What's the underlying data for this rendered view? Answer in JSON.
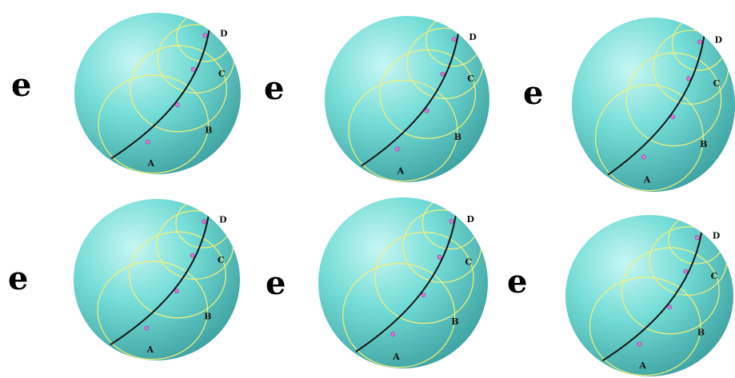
{
  "panels": [
    {
      "letter": "e",
      "points": [
        "A",
        "B",
        "C",
        "D"
      ]
    },
    {
      "letter": "e",
      "points": [
        "A",
        "B",
        "C",
        "D"
      ]
    },
    {
      "letter": "e",
      "points": [
        "A",
        "B",
        "C",
        "D"
      ]
    },
    {
      "letter": "e",
      "points": [
        "A",
        "B",
        "C",
        "D"
      ]
    },
    {
      "letter": "e",
      "points": [
        "A",
        "B",
        "C",
        "D"
      ]
    },
    {
      "letter": "e",
      "points": [
        "A",
        "B",
        "C",
        "D"
      ]
    }
  ],
  "colors": {
    "sphere_light": "#c8f6f2",
    "sphere_mid": "#5fd3cf",
    "sphere_dark": "#3a9e9e",
    "circle": "#f2f07a",
    "geodesic": "#141414",
    "point": "#d77ad8"
  }
}
